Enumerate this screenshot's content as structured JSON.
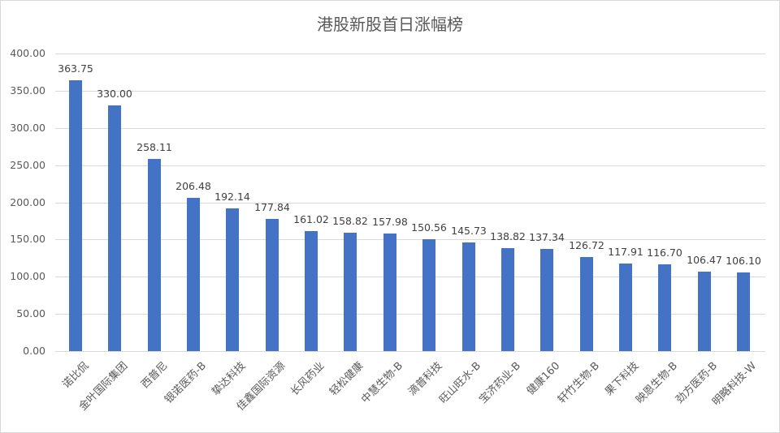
{
  "chart_data": {
    "type": "bar",
    "title": "港股新股首日涨幅榜",
    "xlabel": "",
    "ylabel": "",
    "ylim": [
      0,
      400
    ],
    "yticks": [
      "0.00",
      "50.00",
      "100.00",
      "150.00",
      "200.00",
      "250.00",
      "300.00",
      "350.00",
      "400.00"
    ],
    "grid": true,
    "legend": "none",
    "bar_color": "#4472c4",
    "categories": [
      "诺比侃",
      "金叶国际集团",
      "西普尼",
      "银诺医药-B",
      "挚达科技",
      "佳鑫国际资源",
      "长风药业",
      "轻松健康",
      "中慧生物-B",
      "滴普科技",
      "旺山旺水-B",
      "宝济药业-B",
      "健康160",
      "轩竹生物-B",
      "果下科技",
      "映恩生物-B",
      "劲方医药-B",
      "明略科技-W"
    ],
    "values": [
      363.75,
      330.0,
      258.11,
      206.48,
      192.14,
      177.84,
      161.02,
      158.82,
      157.98,
      150.56,
      145.73,
      138.82,
      137.34,
      126.72,
      117.91,
      116.7,
      106.47,
      106.1
    ],
    "value_labels": [
      "363.75",
      "330.00",
      "258.11",
      "206.48",
      "192.14",
      "177.84",
      "161.02",
      "158.82",
      "157.98",
      "150.56",
      "145.73",
      "138.82",
      "137.34",
      "126.72",
      "117.91",
      "116.70",
      "106.47",
      "106.10"
    ]
  }
}
